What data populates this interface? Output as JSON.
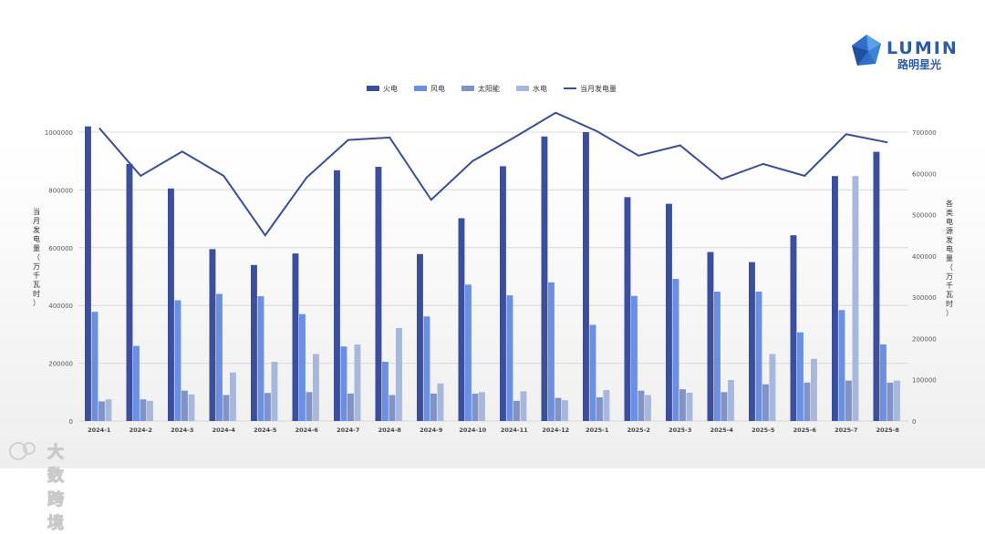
{
  "brand": {
    "name": "LUMIN",
    "subtitle": "路明星光",
    "footer": "大数跨境"
  },
  "chart_data": {
    "type": "bar",
    "categories": [
      "2024-1",
      "2024-2",
      "2024-3",
      "2024-4",
      "2024-5",
      "2024-6",
      "2024-7",
      "2024-8",
      "2024-9",
      "2024-10",
      "2024-11",
      "2024-12",
      "2025-1",
      "2025-2",
      "2025-3",
      "2025-4",
      "2025-5",
      "2025-6",
      "2025-7",
      "2025-8"
    ],
    "series": [
      {
        "name": "火电",
        "type": "bar",
        "axis": "left",
        "color": "#3b4f9c",
        "values": [
          1020000,
          890000,
          805000,
          595000,
          540000,
          580000,
          868000,
          880000,
          578000,
          702000,
          882000,
          985000,
          1000000,
          775000,
          752000,
          585000,
          550000,
          643000,
          848000,
          932000
        ]
      },
      {
        "name": "风电",
        "type": "bar",
        "axis": "left",
        "color": "#6b8fe3",
        "values": [
          378000,
          260000,
          418000,
          440000,
          432000,
          370000,
          258000,
          205000,
          362000,
          472000,
          435000,
          480000,
          333000,
          433000,
          492000,
          448000,
          448000,
          307000,
          384000,
          265000
        ]
      },
      {
        "name": "太阳能",
        "type": "bar",
        "axis": "left",
        "color": "#8093c9",
        "values": [
          68000,
          75000,
          105000,
          90000,
          97000,
          100000,
          95000,
          90000,
          95000,
          95000,
          70000,
          80000,
          82000,
          105000,
          110000,
          100000,
          127000,
          133000,
          140000,
          133000
        ]
      },
      {
        "name": "水电",
        "type": "bar",
        "axis": "left",
        "color": "#a8b7dc",
        "values": [
          75000,
          70000,
          92000,
          168000,
          205000,
          232000,
          265000,
          322000,
          130000,
          100000,
          103000,
          72000,
          107000,
          90000,
          98000,
          142000,
          232000,
          215000,
          848000,
          140000
        ]
      },
      {
        "name": "当月发电量",
        "type": "line",
        "axis": "right",
        "color": "#3a4e97",
        "values": [
          710000,
          594000,
          653000,
          594000,
          450000,
          590000,
          681000,
          687000,
          536000,
          630000,
          687000,
          747000,
          702000,
          643000,
          668000,
          586000,
          623000,
          594000,
          695000,
          675000
        ]
      }
    ],
    "ylabel": "当月发电量（万千瓦时）",
    "y2label": "各类电源发电量（万千瓦时）",
    "ylim": [
      0,
      1000000
    ],
    "y2lim": [
      0,
      700000
    ],
    "yticks": [
      0,
      200000,
      400000,
      600000,
      800000,
      1000000
    ],
    "y2ticks": [
      0,
      100000,
      200000,
      300000,
      400000,
      500000,
      600000,
      700000
    ],
    "legend_position": "top-center",
    "grid": true
  }
}
